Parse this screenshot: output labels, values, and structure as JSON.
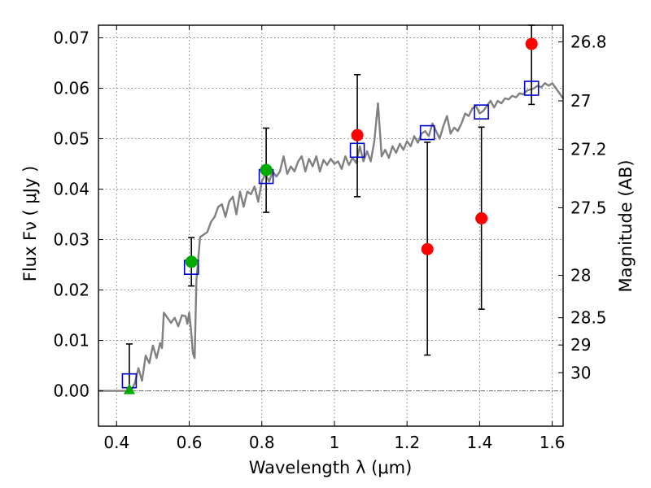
{
  "chart_data": {
    "type": "scatter",
    "xlabel": "Wavelength  λ (μm)",
    "ylabel": "Flux  Fν  ( μJy )",
    "ylabel_right": "Magnitude (AB)",
    "xlim": [
      0.35,
      1.63
    ],
    "ylim": [
      -0.007,
      0.0725
    ],
    "grid": true,
    "x_ticks": [
      {
        "v": 0.4,
        "label": "0.4"
      },
      {
        "v": 0.6,
        "label": "0.6"
      },
      {
        "v": 0.8,
        "label": "0.8"
      },
      {
        "v": 1.0,
        "label": "1"
      },
      {
        "v": 1.2,
        "label": "1.2"
      },
      {
        "v": 1.4,
        "label": "1.4"
      },
      {
        "v": 1.6,
        "label": "1.6"
      }
    ],
    "y_ticks": [
      {
        "v": 0.0,
        "label": "0.00"
      },
      {
        "v": 0.01,
        "label": "0.01"
      },
      {
        "v": 0.02,
        "label": "0.02"
      },
      {
        "v": 0.03,
        "label": "0.03"
      },
      {
        "v": 0.04,
        "label": "0.04"
      },
      {
        "v": 0.05,
        "label": "0.05"
      },
      {
        "v": 0.06,
        "label": "0.06"
      },
      {
        "v": 0.07,
        "label": "0.07"
      }
    ],
    "right_ticks": [
      {
        "label": "26.8",
        "flux": 0.0692
      },
      {
        "label": "27",
        "flux": 0.0575
      },
      {
        "label": "27.2",
        "flux": 0.0479
      },
      {
        "label": "27.5",
        "flux": 0.0363
      },
      {
        "label": "28",
        "flux": 0.0229
      },
      {
        "label": "28.5",
        "flux": 0.0145
      },
      {
        "label": "29",
        "flux": 0.0091
      },
      {
        "label": "30",
        "flux": 0.0036
      }
    ],
    "colors": {
      "model": "#808080",
      "detection": "#00aa00",
      "measurement": "#ff0000",
      "model_box": "#0000cc",
      "errorbar": "#000000"
    },
    "series": [
      {
        "kind": "model_spectrum",
        "points": [
          [
            0.35,
            0.0
          ],
          [
            0.44,
            0.0
          ],
          [
            0.45,
            0.0015
          ],
          [
            0.46,
            0.0045
          ],
          [
            0.47,
            0.002
          ],
          [
            0.48,
            0.007
          ],
          [
            0.49,
            0.0055
          ],
          [
            0.5,
            0.009
          ],
          [
            0.51,
            0.0065
          ],
          [
            0.52,
            0.0095
          ],
          [
            0.525,
            0.0085
          ],
          [
            0.53,
            0.0155
          ],
          [
            0.54,
            0.0145
          ],
          [
            0.55,
            0.0135
          ],
          [
            0.56,
            0.0145
          ],
          [
            0.57,
            0.0128
          ],
          [
            0.58,
            0.015
          ],
          [
            0.59,
            0.0148
          ],
          [
            0.595,
            0.0133
          ],
          [
            0.6,
            0.0155
          ],
          [
            0.605,
            0.012
          ],
          [
            0.61,
            0.0075
          ],
          [
            0.615,
            0.0065
          ],
          [
            0.62,
            0.022
          ],
          [
            0.63,
            0.0305
          ],
          [
            0.64,
            0.031
          ],
          [
            0.65,
            0.0315
          ],
          [
            0.66,
            0.0335
          ],
          [
            0.67,
            0.0345
          ],
          [
            0.68,
            0.0365
          ],
          [
            0.69,
            0.037
          ],
          [
            0.7,
            0.0345
          ],
          [
            0.71,
            0.0375
          ],
          [
            0.72,
            0.0385
          ],
          [
            0.73,
            0.035
          ],
          [
            0.74,
            0.0395
          ],
          [
            0.75,
            0.0365
          ],
          [
            0.76,
            0.0395
          ],
          [
            0.77,
            0.039
          ],
          [
            0.78,
            0.0405
          ],
          [
            0.79,
            0.0375
          ],
          [
            0.8,
            0.0415
          ],
          [
            0.81,
            0.043
          ],
          [
            0.82,
            0.0415
          ],
          [
            0.83,
            0.0435
          ],
          [
            0.84,
            0.0425
          ],
          [
            0.85,
            0.0435
          ],
          [
            0.86,
            0.0465
          ],
          [
            0.87,
            0.043
          ],
          [
            0.88,
            0.0445
          ],
          [
            0.89,
            0.0435
          ],
          [
            0.9,
            0.0455
          ],
          [
            0.91,
            0.0465
          ],
          [
            0.92,
            0.0435
          ],
          [
            0.93,
            0.046
          ],
          [
            0.94,
            0.0445
          ],
          [
            0.95,
            0.0465
          ],
          [
            0.96,
            0.0435
          ],
          [
            0.97,
            0.0458
          ],
          [
            0.98,
            0.0448
          ],
          [
            0.99,
            0.046
          ],
          [
            1.0,
            0.045
          ],
          [
            1.01,
            0.0455
          ],
          [
            1.02,
            0.044
          ],
          [
            1.03,
            0.0465
          ],
          [
            1.04,
            0.0448
          ],
          [
            1.05,
            0.0462
          ],
          [
            1.06,
            0.0452
          ],
          [
            1.07,
            0.0485
          ],
          [
            1.08,
            0.0455
          ],
          [
            1.09,
            0.0475
          ],
          [
            1.1,
            0.0455
          ],
          [
            1.11,
            0.0495
          ],
          [
            1.12,
            0.057
          ],
          [
            1.13,
            0.0465
          ],
          [
            1.14,
            0.0478
          ],
          [
            1.15,
            0.0462
          ],
          [
            1.16,
            0.0485
          ],
          [
            1.17,
            0.0472
          ],
          [
            1.18,
            0.049
          ],
          [
            1.19,
            0.0478
          ],
          [
            1.2,
            0.0495
          ],
          [
            1.21,
            0.0485
          ],
          [
            1.22,
            0.0505
          ],
          [
            1.23,
            0.0492
          ],
          [
            1.24,
            0.051
          ],
          [
            1.25,
            0.0515
          ],
          [
            1.26,
            0.0505
          ],
          [
            1.27,
            0.053
          ],
          [
            1.28,
            0.0515
          ],
          [
            1.29,
            0.05
          ],
          [
            1.3,
            0.0525
          ],
          [
            1.31,
            0.0545
          ],
          [
            1.32,
            0.051
          ],
          [
            1.33,
            0.0522
          ],
          [
            1.34,
            0.0515
          ],
          [
            1.35,
            0.053
          ],
          [
            1.36,
            0.055
          ],
          [
            1.37,
            0.0545
          ],
          [
            1.38,
            0.056
          ],
          [
            1.39,
            0.0565
          ],
          [
            1.4,
            0.055
          ],
          [
            1.41,
            0.0555
          ],
          [
            1.42,
            0.0565
          ],
          [
            1.43,
            0.0575
          ],
          [
            1.44,
            0.0562
          ],
          [
            1.45,
            0.0575
          ],
          [
            1.46,
            0.057
          ],
          [
            1.47,
            0.058
          ],
          [
            1.48,
            0.0578
          ],
          [
            1.49,
            0.0585
          ],
          [
            1.5,
            0.0582
          ],
          [
            1.51,
            0.059
          ],
          [
            1.52,
            0.0588
          ],
          [
            1.53,
            0.0595
          ],
          [
            1.54,
            0.0598
          ],
          [
            1.55,
            0.06
          ],
          [
            1.56,
            0.0605
          ],
          [
            1.57,
            0.0602
          ],
          [
            1.58,
            0.061
          ],
          [
            1.59,
            0.0605
          ],
          [
            1.6,
            0.061
          ],
          [
            1.61,
            0.06
          ],
          [
            1.62,
            0.059
          ],
          [
            1.63,
            0.058
          ]
        ]
      },
      {
        "kind": "model_photometry",
        "marker": "square",
        "points": [
          [
            0.435,
            0.002
          ],
          [
            0.606,
            0.0245
          ],
          [
            0.812,
            0.0425
          ],
          [
            1.063,
            0.0477
          ],
          [
            1.256,
            0.0512
          ],
          [
            1.405,
            0.0553
          ],
          [
            1.543,
            0.06
          ]
        ]
      },
      {
        "kind": "detection",
        "marker": "circle",
        "points": [
          [
            0.606,
            0.0256,
            0.0208,
            0.0304
          ],
          [
            0.812,
            0.0438,
            0.0354,
            0.0521
          ]
        ]
      },
      {
        "kind": "measurement",
        "marker": "circle",
        "points": [
          [
            1.063,
            0.0507,
            0.0385,
            0.0627
          ],
          [
            1.256,
            0.0281,
            0.0071,
            0.0493
          ],
          [
            1.405,
            0.0342,
            0.0162,
            0.0523
          ],
          [
            1.543,
            0.0688,
            0.0568,
            0.0725
          ]
        ]
      },
      {
        "kind": "upper_limit",
        "marker": "triangle",
        "points": [
          [
            0.435,
            0.0,
            0.0,
            0.0093
          ]
        ]
      }
    ]
  }
}
